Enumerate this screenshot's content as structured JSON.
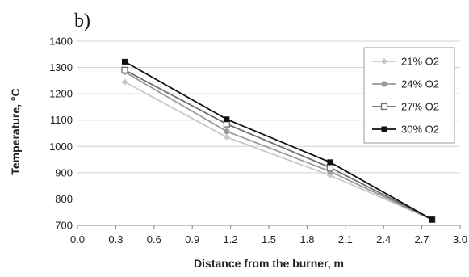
{
  "panel_label": "b)",
  "chart_data": {
    "type": "line",
    "xlabel": "Distance from the burner, m",
    "ylabel": "Temperature, °C",
    "xlim": [
      0.0,
      3.0
    ],
    "ylim": [
      700,
      1400
    ],
    "xticks": [
      "0.0",
      "0.3",
      "0.6",
      "0.9",
      "1.2",
      "1.5",
      "1.8",
      "2.1",
      "2.4",
      "2.7",
      "3.0"
    ],
    "yticks": [
      "700",
      "800",
      "900",
      "1000",
      "1100",
      "1200",
      "1300",
      "1400"
    ],
    "grid": "horizontal",
    "legend_position": "right",
    "x": [
      0.37,
      1.17,
      1.98,
      2.78
    ],
    "series": [
      {
        "name": "21% O2",
        "values": [
          1245,
          1035,
          890,
          722
        ],
        "color": "#c8c8c8",
        "marker": "diamond"
      },
      {
        "name": "24% O2",
        "values": [
          1283,
          1057,
          905,
          722
        ],
        "color": "#9a9a9a",
        "marker": "circle"
      },
      {
        "name": "27% O2",
        "values": [
          1290,
          1085,
          920,
          722
        ],
        "color": "#6e6e6e",
        "marker": "square-open"
      },
      {
        "name": "30% O2",
        "values": [
          1322,
          1103,
          940,
          722
        ],
        "color": "#111111",
        "marker": "square"
      }
    ]
  }
}
